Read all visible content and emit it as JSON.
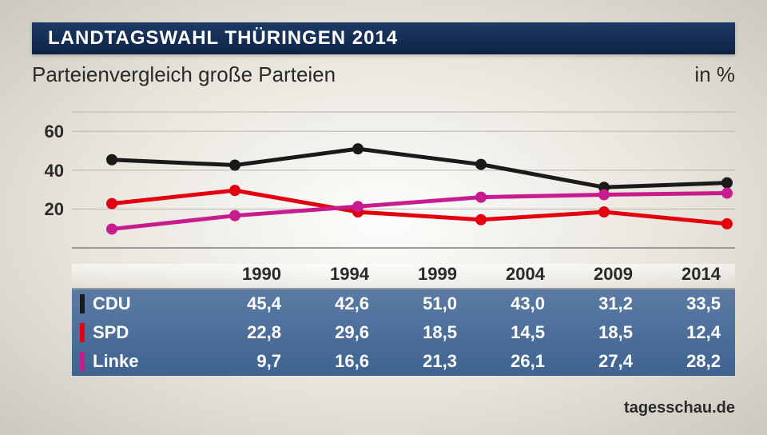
{
  "header": {
    "title": "LANDTAGSWAHL THÜRINGEN 2014",
    "subtitle": "Parteienvergleich große Parteien",
    "unit": "in %"
  },
  "chart": {
    "type": "line",
    "years": [
      "1990",
      "1994",
      "1999",
      "2004",
      "2009",
      "2014"
    ],
    "ylim": [
      0,
      70
    ],
    "yticks": [
      20,
      40,
      60
    ],
    "grid_color": "#b8b5ac",
    "baseline_color": "#999999",
    "background": "transparent",
    "line_width": 5,
    "marker_radius": 7,
    "label_fontsize": 22,
    "series": [
      {
        "id": "cdu",
        "name": "CDU",
        "color": "#1a1a1a",
        "values": [
          45.4,
          42.6,
          51.0,
          43.0,
          31.2,
          33.5
        ]
      },
      {
        "id": "spd",
        "name": "SPD",
        "color": "#e3000f",
        "values": [
          22.8,
          29.6,
          18.5,
          14.5,
          18.5,
          12.4
        ]
      },
      {
        "id": "linke",
        "name": "Linke",
        "color": "#c81b8e",
        "values": [
          9.7,
          16.6,
          21.3,
          26.1,
          27.4,
          28.2
        ]
      }
    ]
  },
  "table": {
    "header_bg": "#d8d5cc",
    "body_bg_top": "#5b7ba3",
    "body_bg_bottom": "#3f6390",
    "text_color": "#ffffff"
  },
  "source": "tagesschau.de"
}
